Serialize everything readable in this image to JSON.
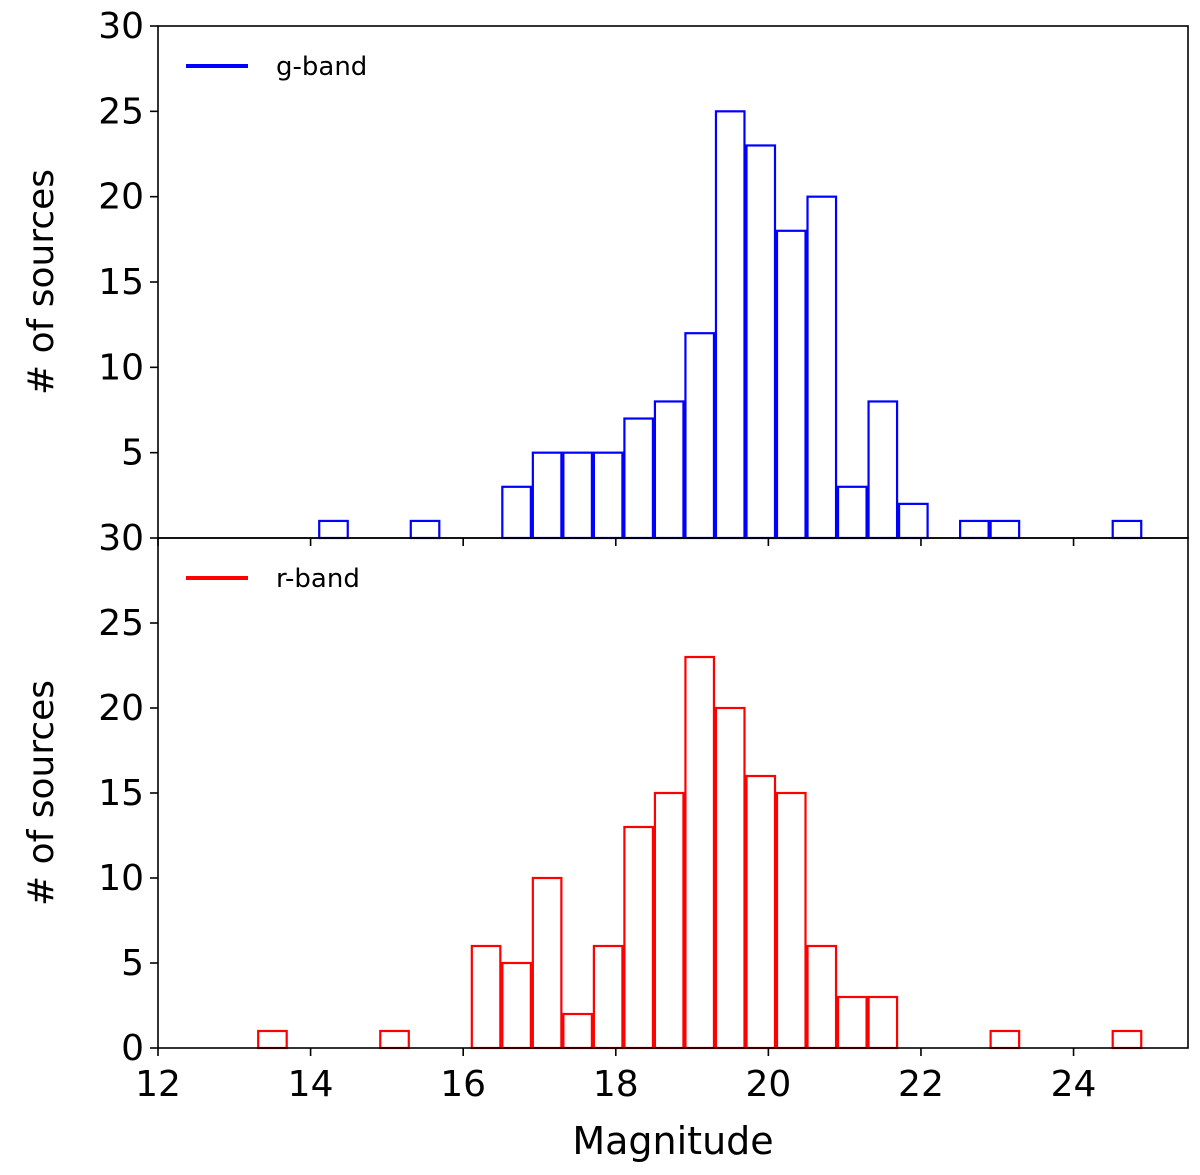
{
  "chart_data": [
    {
      "type": "histogram",
      "panel": "top",
      "bin_edges_start": 12.5,
      "bin_width": 0.4,
      "bin_left_edges": [
        12.5,
        12.9,
        13.3,
        13.7,
        14.1,
        14.5,
        14.9,
        15.3,
        15.7,
        16.1,
        16.5,
        16.9,
        17.3,
        17.7,
        18.1,
        18.5,
        18.9,
        19.3,
        19.7,
        20.1,
        20.5,
        20.9,
        21.3,
        21.7,
        22.1,
        22.5,
        22.9,
        23.3,
        23.7,
        24.1,
        24.5,
        24.9
      ],
      "counts": [
        0,
        0,
        0,
        0,
        1,
        0,
        0,
        1,
        0,
        0,
        3,
        5,
        5,
        5,
        7,
        8,
        12,
        25,
        23,
        18,
        20,
        3,
        8,
        2,
        0,
        1,
        1,
        0,
        0,
        0,
        1,
        0
      ],
      "series": [
        {
          "name": "g-band",
          "color": "#0000ff"
        }
      ],
      "ylabel": "# of sources",
      "xlabel": "",
      "ylim": [
        0,
        30
      ],
      "yticks": [
        "5",
        "10",
        "15",
        "20",
        "25",
        "30"
      ],
      "legend_position": "upper-left"
    },
    {
      "type": "histogram",
      "panel": "bottom",
      "bin_edges_start": 12.5,
      "bin_width": 0.4,
      "bin_left_edges": [
        12.5,
        12.9,
        13.3,
        13.7,
        14.1,
        14.5,
        14.9,
        15.3,
        15.7,
        16.1,
        16.5,
        16.9,
        17.3,
        17.7,
        18.1,
        18.5,
        18.9,
        19.3,
        19.7,
        20.1,
        20.5,
        20.9,
        21.3,
        21.7,
        22.1,
        22.5,
        22.9,
        23.3,
        23.7,
        24.1,
        24.5,
        24.9
      ],
      "counts": [
        0,
        0,
        1,
        0,
        0,
        0,
        1,
        0,
        0,
        6,
        5,
        10,
        2,
        6,
        13,
        15,
        23,
        20,
        16,
        15,
        6,
        3,
        3,
        0,
        0,
        0,
        1,
        0,
        0,
        0,
        1,
        0
      ],
      "series": [
        {
          "name": "r-band",
          "color": "#ff0000"
        }
      ],
      "ylabel": "# of sources",
      "xlabel": "Magnitude",
      "ylim": [
        0,
        30
      ],
      "yticks": [
        "0",
        "5",
        "10",
        "15",
        "20",
        "25",
        "30"
      ],
      "xticks": [
        "12",
        "14",
        "16",
        "18",
        "20",
        "22",
        "24"
      ],
      "legend_position": "upper-left"
    }
  ]
}
